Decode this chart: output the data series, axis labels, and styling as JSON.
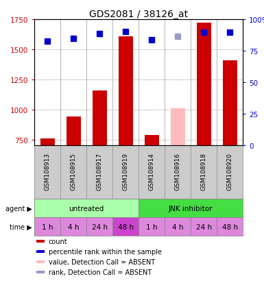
{
  "title": "GDS2081 / 38126_at",
  "samples": [
    "GSM108913",
    "GSM108915",
    "GSM108917",
    "GSM108919",
    "GSM108914",
    "GSM108916",
    "GSM108918",
    "GSM108920"
  ],
  "bar_values": [
    760,
    940,
    1160,
    1610,
    790,
    null,
    1720,
    1410
  ],
  "bar_absent_values": [
    null,
    null,
    null,
    null,
    null,
    1010,
    null,
    null
  ],
  "bar_color": "#cc0000",
  "bar_absent_color": "#ffbbbb",
  "rank_values": [
    1570,
    1590,
    1630,
    1650,
    1580,
    null,
    1640,
    1640
  ],
  "rank_absent_values": [
    null,
    null,
    null,
    null,
    null,
    1610,
    null,
    null
  ],
  "rank_color": "#0000cc",
  "rank_absent_color": "#9999cc",
  "ylim_left": [
    700,
    1750
  ],
  "ylim_right": [
    0,
    100
  ],
  "yticks_left": [
    750,
    1000,
    1250,
    1500,
    1750
  ],
  "yticks_right": [
    0,
    25,
    50,
    75,
    100
  ],
  "left_ycolor": "#cc0000",
  "right_ycolor": "#0000cc",
  "time_labels": [
    "1 h",
    "4 h",
    "24 h",
    "48 h",
    "1 h",
    "4 h",
    "24 h",
    "48 h"
  ],
  "time_colors": [
    "#dd88dd",
    "#dd88dd",
    "#dd88dd",
    "#cc44cc",
    "#dd88dd",
    "#dd88dd",
    "#dd88dd",
    "#dd88dd"
  ],
  "agent_untreated_color": "#aaffaa",
  "agent_jnk_color": "#44dd44",
  "sample_box_color": "#cccccc",
  "sample_box_edge": "#999999",
  "legend_items": [
    {
      "color": "#cc0000",
      "label": "count"
    },
    {
      "color": "#0000cc",
      "label": "percentile rank within the sample"
    },
    {
      "color": "#ffbbbb",
      "label": "value, Detection Call = ABSENT"
    },
    {
      "color": "#9999cc",
      "label": "rank, Detection Call = ABSENT"
    }
  ],
  "bar_width": 0.55,
  "marker_size": 6
}
